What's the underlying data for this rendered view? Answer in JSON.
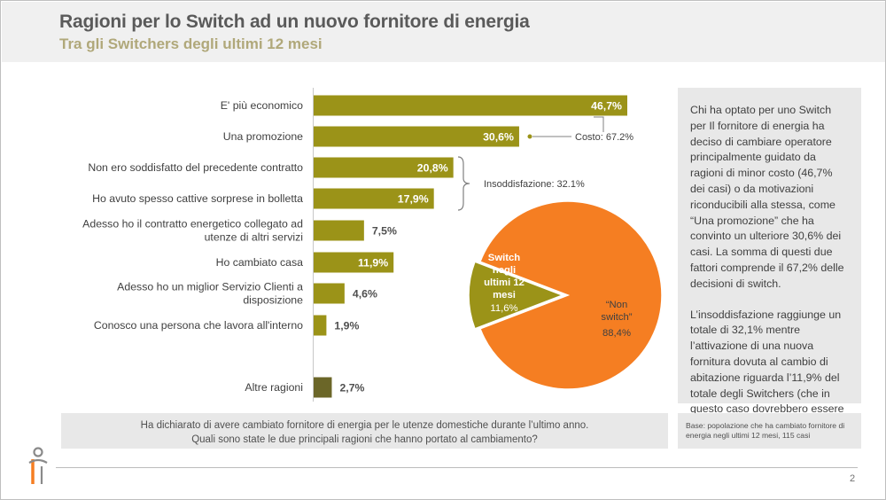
{
  "header": {
    "title": "Ragioni per lo Switch ad un nuovo fornitore di energia",
    "subtitle": "Tra gli Switchers degli ultimi 12 mesi"
  },
  "chart_data": [
    {
      "type": "bar",
      "orientation": "horizontal",
      "categories": [
        "E' più economico",
        "Una promozione",
        "Non ero soddisfatto del precedente contratto",
        "Ho avuto spesso cattive sorprese in bolletta",
        "Adesso ho il contratto energetico collegato ad utenze di altri servizi",
        "Ho cambiato casa",
        "Adesso ho un miglior Servizio Clienti a disposizione",
        "Conosco una persona che lavora all'interno",
        "Altre ragioni"
      ],
      "category_lines": [
        [
          "E' più economico"
        ],
        [
          "Una promozione"
        ],
        [
          "Non ero soddisfatto del precedente contratto"
        ],
        [
          "Ho avuto spesso cattive sorprese in bolletta"
        ],
        [
          "Adesso ho il contratto energetico collegato ad",
          "utenze di altri servizi"
        ],
        [
          "Ho cambiato casa"
        ],
        [
          "Adesso ho un miglior Servizio Clienti a",
          "disposizione"
        ],
        [
          "Conosco una persona che lavora all'interno"
        ],
        [
          "Altre ragioni"
        ]
      ],
      "values": [
        46.7,
        30.6,
        20.8,
        17.9,
        7.5,
        11.9,
        4.6,
        1.9,
        2.7
      ],
      "labels": [
        "46,7%",
        "30,6%",
        "20,8%",
        "17,9%",
        "7,5%",
        "11,9%",
        "4,6%",
        "1,9%",
        "2,7%"
      ],
      "unit": "%",
      "xlim": [
        0,
        50
      ],
      "annotations": [
        {
          "text": "Costo: 67.2%",
          "covers": [
            "E' più economico",
            "Una promozione"
          ]
        },
        {
          "text": "Insoddisfazione: 32.1%",
          "covers": [
            "Non ero soddisfatto del precedente contratto",
            "Ho avuto spesso cattive sorprese in bolletta"
          ]
        }
      ],
      "colors": {
        "bar": "#9b9318",
        "bar_other": "#6b6628",
        "label_inside": "#ffffff",
        "label_outside": "#505050"
      }
    },
    {
      "type": "pie",
      "slices": [
        {
          "label": "Switch negli ultimi 12 mesi",
          "label_lines": [
            "Switch",
            "negli",
            "ultimi 12",
            "mesi"
          ],
          "value": 11.6,
          "value_label": "11,6%",
          "color": "#9b9318"
        },
        {
          "label": "“Non switch”",
          "label_lines": [
            "“Non",
            "switch”"
          ],
          "value": 88.4,
          "value_label": "88,4%",
          "color": "#f57e22"
        }
      ]
    }
  ],
  "side_panel": {
    "paragraph1": "Chi ha optato per uno Switch per Il fornitore di energia ha deciso di cambiare operatore principalmente guidato da ragioni di minor costo (46,7% dei casi) o da motivazioni riconducibili alla stessa, come “Una promozione” che ha convinto un ulteriore 30,6% dei casi. La somma di questi due fattori comprende il 67,2% delle decisioni di switch.",
    "paragraph2": "L’insoddisfazione raggiunge un totale di 32,1% mentre l’attivazione di una nuova fornitura dovuta al cambio di abitazione riguarda l’11,9% del totale degli Switchers (che in questo caso dovrebbero essere considerati nuovi clienti)"
  },
  "question": {
    "line1": "Ha dichiarato di avere cambiato fornitore di energia per le utenze domestiche durante l’ultimo anno.",
    "line2": "Quali sono state le due principali ragioni che hanno portato al cambiamento?"
  },
  "base_note": "Base: popolazione che ha cambiato fornitore di energia negli ultimi 12 mesi, 115 casi",
  "footer": {
    "page_number": "2"
  },
  "logo": {
    "icon": "person-logo-icon",
    "colors": [
      "#8a8a8a",
      "#f57e22"
    ]
  }
}
